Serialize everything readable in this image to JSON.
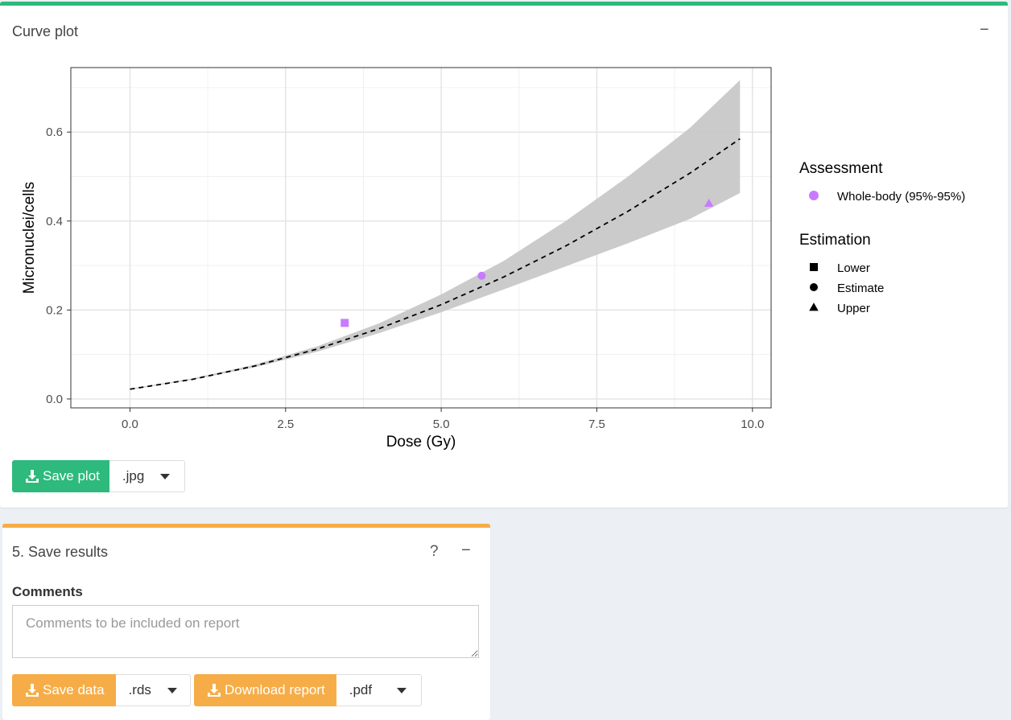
{
  "curve_box": {
    "title": "Curve plot",
    "collapse_icon": "minus-icon",
    "accent_color": "#2dba7c",
    "save_plot_label": "Save plot",
    "plot_format": ".jpg"
  },
  "save_box": {
    "title": "5. Save results",
    "help_label": "?",
    "collapse_icon": "minus-icon",
    "accent_color": "#f6ad47",
    "comments_label": "Comments",
    "comments_placeholder": "Comments to be included on report",
    "comments_value": "",
    "save_data_label": "Save data",
    "data_format": ".rds",
    "download_report_label": "Download report",
    "report_format": ".pdf"
  },
  "chart_data": {
    "type": "line",
    "xlabel": "Dose (Gy)",
    "ylabel": "Micronuclei/cells",
    "xlim": [
      -0.95,
      10.3
    ],
    "ylim": [
      -0.02,
      0.745
    ],
    "x_ticks": [
      "0.0",
      "2.5",
      "5.0",
      "7.5",
      "10.0"
    ],
    "y_ticks": [
      "0.0",
      "0.2",
      "0.4",
      "0.6"
    ],
    "grid": true,
    "legend_position": "right",
    "curve": {
      "x": [
        0,
        1,
        2,
        3,
        4,
        5,
        6,
        7,
        8,
        9,
        9.8
      ],
      "estimate": [
        0.022,
        0.044,
        0.074,
        0.112,
        0.158,
        0.212,
        0.274,
        0.344,
        0.422,
        0.508,
        0.585
      ],
      "lower": [
        0.021,
        0.043,
        0.071,
        0.106,
        0.148,
        0.195,
        0.246,
        0.298,
        0.35,
        0.405,
        0.463
      ],
      "upper": [
        0.023,
        0.046,
        0.077,
        0.118,
        0.17,
        0.235,
        0.31,
        0.4,
        0.5,
        0.61,
        0.717
      ]
    },
    "points": [
      {
        "label": "Lower",
        "shape": "square",
        "x": 3.45,
        "y": 0.171
      },
      {
        "label": "Estimate",
        "shape": "circle",
        "x": 5.65,
        "y": 0.277
      },
      {
        "label": "Upper",
        "shape": "triangle",
        "x": 9.3,
        "y": 0.44
      }
    ],
    "point_color": "#c77cff",
    "band_color": "#c8c8c8",
    "legends": [
      {
        "title": "Assessment",
        "entries": [
          {
            "label": "Whole-body (95%-95%)",
            "shape": "circle",
            "color": "#c77cff"
          }
        ]
      },
      {
        "title": "Estimation",
        "entries": [
          {
            "label": "Lower",
            "shape": "square",
            "color": "#000000"
          },
          {
            "label": "Estimate",
            "shape": "circle",
            "color": "#000000"
          },
          {
            "label": "Upper",
            "shape": "triangle",
            "color": "#000000"
          }
        ]
      }
    ]
  }
}
